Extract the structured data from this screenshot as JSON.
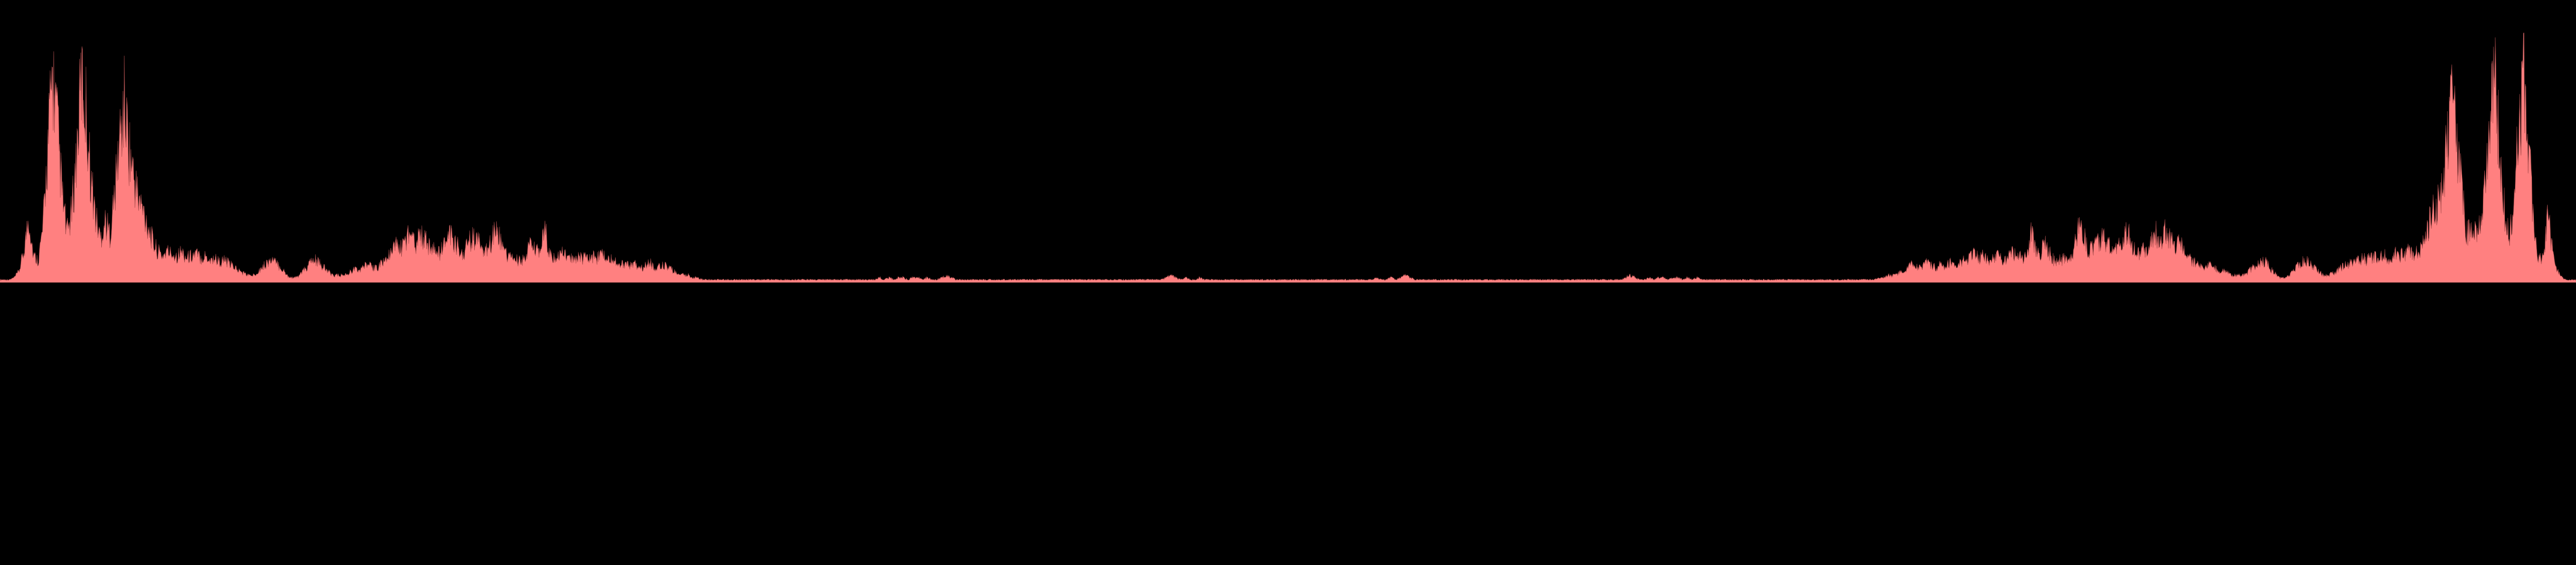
{
  "chart_data": {
    "type": "area",
    "title": "",
    "xlabel": "",
    "ylabel": "",
    "grid": false,
    "legend": "none",
    "x_range": [
      0,
      1
    ],
    "y_range": [
      0,
      1
    ],
    "colors": {
      "background": "#000000",
      "fill": "#ff8080",
      "stroke": "#a04848",
      "baseline": "#ff8080"
    },
    "series": [
      {
        "symmetric": true,
        "values": [
          0.01,
          0.01,
          0.01,
          0.02,
          0.05,
          0.14,
          0.3,
          0.12,
          0.1,
          0.25,
          0.62,
          0.96,
          0.72,
          0.4,
          0.22,
          0.32,
          0.58,
          0.94,
          0.8,
          0.48,
          0.3,
          0.2,
          0.28,
          0.22,
          0.4,
          0.65,
          0.82,
          0.62,
          0.48,
          0.38,
          0.32,
          0.26,
          0.18,
          0.14,
          0.12,
          0.14,
          0.13,
          0.12,
          0.14,
          0.11,
          0.12,
          0.13,
          0.11,
          0.12,
          0.1,
          0.11,
          0.09,
          0.1,
          0.08,
          0.07,
          0.05,
          0.04,
          0.03,
          0.03,
          0.05,
          0.07,
          0.09,
          0.1,
          0.08,
          0.06,
          0.03,
          0.02,
          0.02,
          0.04,
          0.06,
          0.09,
          0.1,
          0.08,
          0.06,
          0.04,
          0.03,
          0.03,
          0.03,
          0.04,
          0.06,
          0.05,
          0.07,
          0.08,
          0.06,
          0.07,
          0.09,
          0.11,
          0.13,
          0.18,
          0.15,
          0.2,
          0.24,
          0.18,
          0.22,
          0.19,
          0.16,
          0.14,
          0.13,
          0.17,
          0.24,
          0.17,
          0.16,
          0.13,
          0.18,
          0.2,
          0.18,
          0.16,
          0.14,
          0.2,
          0.26,
          0.16,
          0.12,
          0.11,
          0.1,
          0.09,
          0.12,
          0.18,
          0.14,
          0.13,
          0.24,
          0.12,
          0.11,
          0.12,
          0.13,
          0.11,
          0.1,
          0.12,
          0.11,
          0.1,
          0.12,
          0.11,
          0.13,
          0.11,
          0.1,
          0.09,
          0.08,
          0.09,
          0.07,
          0.08,
          0.06,
          0.08,
          0.09,
          0.06,
          0.07,
          0.08,
          0.06,
          0.05,
          0.04,
          0.03,
          0.03,
          0.02,
          0.02,
          0.01,
          0.01,
          0.01,
          0.01,
          0.01,
          0.01,
          0.01,
          0.01,
          0.01,
          0.01,
          0.01,
          0.01,
          0.01,
          0.01,
          0.01,
          0.01,
          0.01,
          0.01,
          0.01,
          0.01,
          0.01,
          0.01,
          0.01,
          0.01,
          0.01,
          0.01,
          0.01,
          0.01,
          0.01,
          0.01,
          0.01,
          0.01,
          0.01,
          0.01,
          0.01,
          0.01,
          0.01,
          0.02,
          0.01,
          0.02,
          0.01,
          0.02,
          0.02,
          0.01,
          0.02,
          0.02,
          0.01,
          0.02,
          0.01,
          0.01,
          0.02,
          0.03,
          0.02,
          0.01,
          0.01,
          0.01,
          0.01,
          0.01,
          0.01,
          0.01,
          0.01,
          0.01,
          0.01,
          0.01,
          0.01,
          0.01,
          0.01,
          0.01,
          0.01,
          0.01,
          0.01,
          0.01,
          0.01,
          0.01,
          0.01,
          0.01,
          0.01,
          0.01,
          0.01,
          0.01,
          0.01,
          0.01,
          0.01,
          0.01,
          0.01,
          0.01,
          0.01,
          0.01,
          0.01,
          0.01,
          0.01,
          0.01,
          0.01,
          0.01,
          0.01,
          0.01,
          0.01,
          0.02,
          0.03,
          0.02,
          0.01,
          0.02,
          0.01,
          0.01,
          0.02,
          0.01,
          0.01,
          0.01,
          0.01,
          0.01,
          0.01,
          0.01,
          0.01,
          0.01,
          0.01,
          0.01,
          0.01,
          0.01,
          0.01,
          0.01,
          0.01,
          0.01,
          0.01
        ]
      }
    ]
  }
}
